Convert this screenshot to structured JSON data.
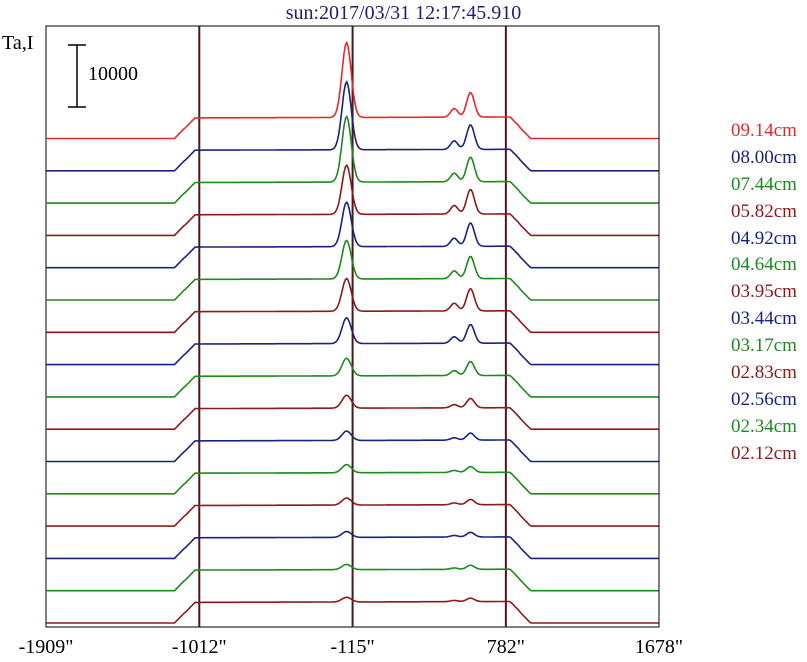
{
  "chart_data": {
    "type": "line",
    "title": "sun:2017/03/31 12:17:45.910",
    "ylabel": "Ta,I",
    "scale_bar_label": "10000",
    "x_tick_labels": [
      "-1909\"",
      "-1012\"",
      "-115\"",
      "782\"",
      "1678\""
    ],
    "x_ticks": [
      -1909,
      -1012,
      -115,
      782,
      1678
    ],
    "xlim": [
      -1909,
      1678
    ],
    "vertical_lines": [
      -1012,
      -115,
      782
    ],
    "offset_step": 3600,
    "baseline_level": 0,
    "series": [
      {
        "name": "09.14cm",
        "color": "#e8282a",
        "disk": 3600,
        "peak1": 12800,
        "peak2": 4200
      },
      {
        "name": "08.00cm",
        "color": "#1a237e",
        "disk": 3600,
        "peak1": 11600,
        "peak2": 4200
      },
      {
        "name": "07.44cm",
        "color": "#1e8a1e",
        "disk": 3600,
        "peak1": 11200,
        "peak2": 4200
      },
      {
        "name": "05.82cm",
        "color": "#8b1a1a",
        "disk": 3600,
        "peak1": 8400,
        "peak2": 4200
      },
      {
        "name": "04.92cm",
        "color": "#1a237e",
        "disk": 3600,
        "peak1": 7600,
        "peak2": 4000
      },
      {
        "name": "04.64cm",
        "color": "#1e8a1e",
        "disk": 3600,
        "peak1": 6600,
        "peak2": 3800
      },
      {
        "name": "03.95cm",
        "color": "#8b1a1a",
        "disk": 3600,
        "peak1": 5600,
        "peak2": 3800
      },
      {
        "name": "03.44cm",
        "color": "#1a237e",
        "disk": 3600,
        "peak1": 4400,
        "peak2": 3200
      },
      {
        "name": "03.17cm",
        "color": "#1e8a1e",
        "disk": 3600,
        "peak1": 3000,
        "peak2": 2400
      },
      {
        "name": "02.83cm",
        "color": "#8b1a1a",
        "disk": 3600,
        "peak1": 2200,
        "peak2": 1600
      },
      {
        "name": "02.56cm",
        "color": "#1a237e",
        "disk": 3600,
        "peak1": 1600,
        "peak2": 1200
      },
      {
        "name": "02.34cm",
        "color": "#1e8a1e",
        "disk": 3600,
        "peak1": 1400,
        "peak2": 1000
      },
      {
        "name": "02.12cm",
        "color": "#8b1a1a",
        "disk": 3600,
        "peak1": 1200,
        "peak2": 900
      }
    ],
    "unlabeled_bottom_series": [
      {
        "color": "#1a237e",
        "disk": 3600,
        "peak1": 1000,
        "peak2": 800
      },
      {
        "color": "#1e8a1e",
        "disk": 3600,
        "peak1": 900,
        "peak2": 700
      },
      {
        "color": "#8b1a1a",
        "disk": 3600,
        "peak1": 800,
        "peak2": 600
      }
    ],
    "grid": false,
    "legend_position": "right"
  }
}
